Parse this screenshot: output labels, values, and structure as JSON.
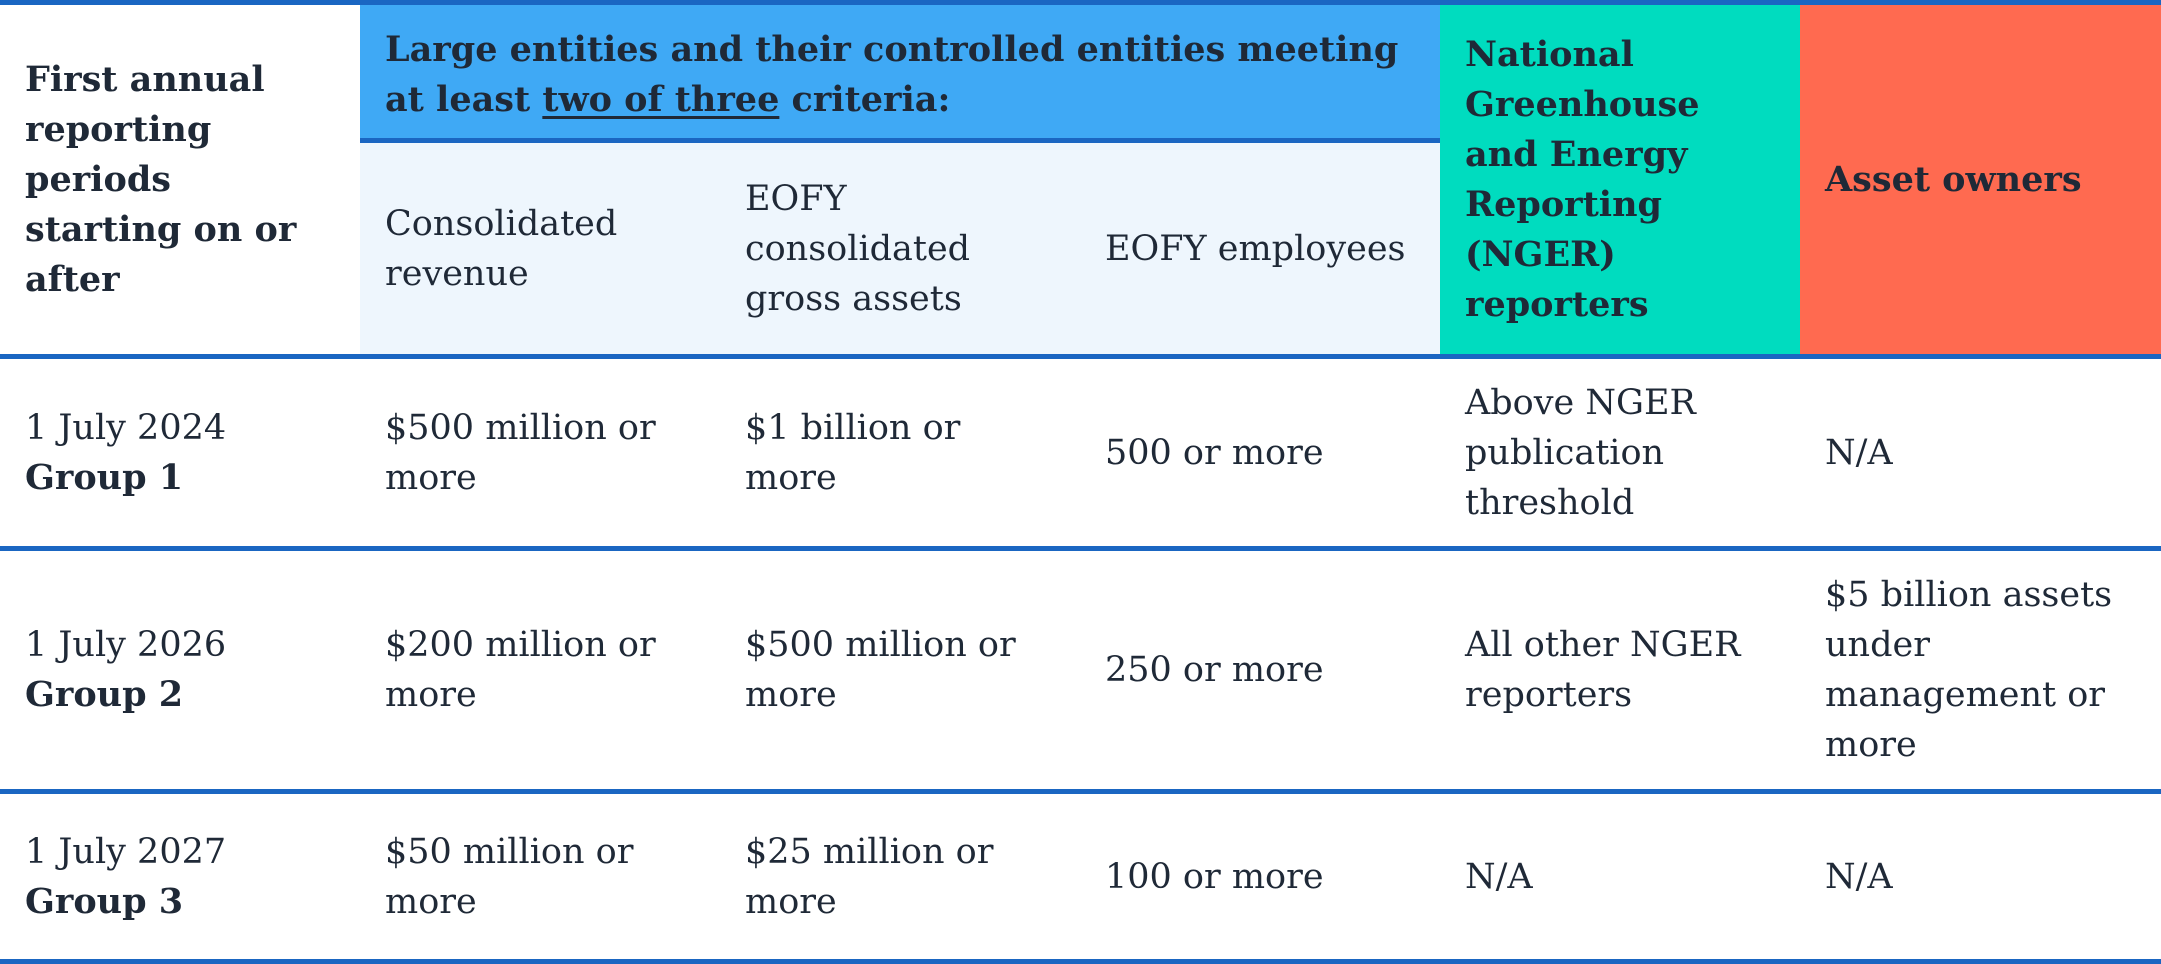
{
  "header": {
    "first_col": "First annual reporting periods starting on or after",
    "large_entities_prefix": "Large entities and their controlled entities meeting at least ",
    "large_entities_underlined": "two of three",
    "large_entities_suffix": " criteria:",
    "sub_revenue": "Consolidated revenue",
    "sub_assets": "EOFY consolidated gross assets",
    "sub_employees": "EOFY employees",
    "nger": "National Greenhouse and Energy Reporting (NGER) reporters",
    "asset_owners": "Asset owners"
  },
  "rows": [
    {
      "date": "1 July 2024",
      "group": "Group 1",
      "revenue": "$500 million or more",
      "assets": "$1 billion or more",
      "employees": "500 or more",
      "nger": "Above NGER publication threshold",
      "asset_owners": "N/A"
    },
    {
      "date": "1 July 2026",
      "group": "Group 2",
      "revenue": "$200 million or more",
      "assets": "$500 million or more",
      "employees": "250 or more",
      "nger": "All other NGER reporters",
      "asset_owners": "$5 billion assets under management or more"
    },
    {
      "date": "1 July 2027",
      "group": "Group 3",
      "revenue": "$50 million or more",
      "assets": "$25 million or more",
      "employees": "100 or more",
      "nger": "N/A",
      "asset_owners": "N/A"
    }
  ],
  "colors": {
    "rule_blue": "#1a66c2",
    "header_blue": "#3fa9f5",
    "subheader_tint": "#eef6fd",
    "nger_green": "#00dcbf",
    "asset_owners_red": "#ff6a50"
  }
}
